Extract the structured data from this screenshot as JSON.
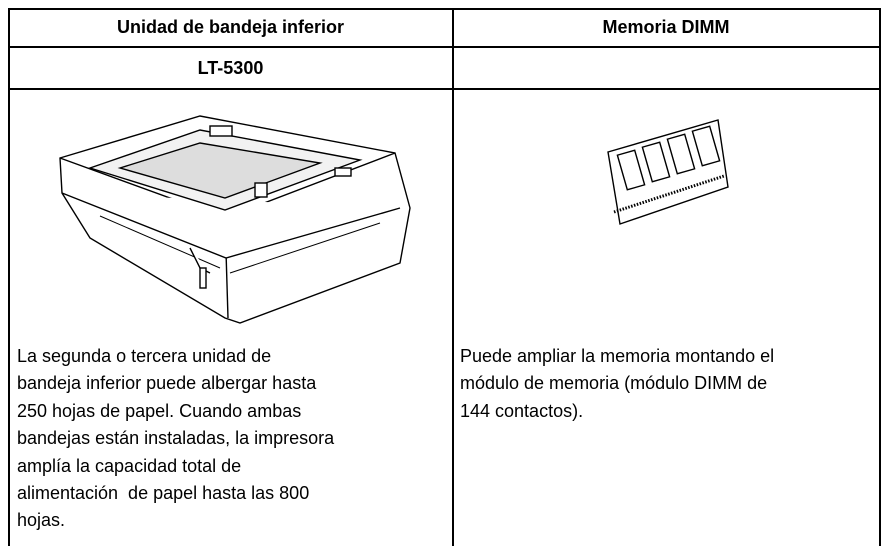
{
  "table": {
    "header": [
      "Unidad de bandeja inferior",
      "Memoria DIMM"
    ],
    "model_row": [
      "LT-5300"
    ],
    "descriptions": {
      "left": [
        "La segunda o tercera unidad de",
        "bandeja inferior puede albergar hasta",
        "250 hojas de papel. Cuando ambas",
        "bandejas están instaladas, la impresora",
        "amplía la capacidad total de",
        "alimentación  de papel hasta las 800",
        "hojas."
      ],
      "right": [
        "Puede ampliar la memoria montando el",
        "módulo de memoria (módulo DIMM de",
        "144 contactos)."
      ]
    }
  }
}
